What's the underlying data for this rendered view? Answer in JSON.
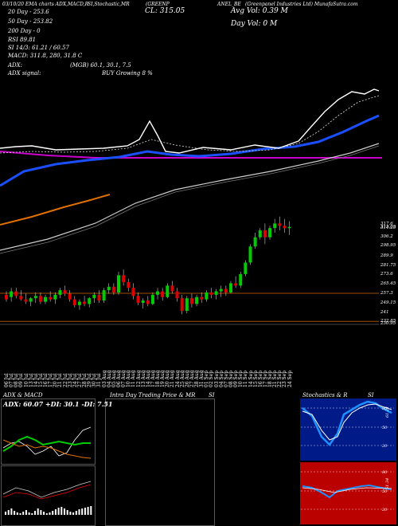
{
  "header": {
    "source": "MunafaSutra.com",
    "code_line": "03/10/20 EMA charts ADX,MACD,R",
    "stoch_line": "SI,Stochastic,MR",
    "name_line": "(GREENP",
    "anel_line": "ANEL_BE",
    "company_line": "(Greenpanel Industries Ltd) MunafaSutra.com",
    "cl": "CL: 315.05",
    "avg_vol": "Avg Vol: 0.39 M",
    "day_vol": "Day Vol: 0 M"
  },
  "info": {
    "dma20": "20 Day - 253.6",
    "dma50": "50 Day - 253.82",
    "dma200": "200 Day - 0",
    "rsi_line": "RSI 89.81",
    "stoch_line": "SI 14/3: 61.21 / 60.57",
    "macd_line": "MACD: 311.8, 280, 31.8 C",
    "adx_line": "ADX:",
    "adx_vals": "(MGB) 60.1, 30.1, 7.5",
    "adx_signal": "ADX signal:",
    "signal": "BUY Growing 8 %"
  },
  "panels": {
    "adx_title": "ADX  & MACD",
    "adx_box": "ADX: 60.07 +DI: 30.1 -DI: 7.51",
    "intraday_title": "Intra Day Trading Price  & MR",
    "intraday_si": "SI",
    "stoch_title": "Stochastics & R",
    "stoch_si": "SI",
    "stoch_scale": [
      "80",
      "50",
      "20"
    ],
    "rsi_scale": [
      "80",
      "50",
      "20"
    ],
    "stoch_value": "61.21",
    "rsi_value": "51.34"
  },
  "colors": {
    "candle_up": "#00cc00",
    "candle_down": "#dd0000",
    "ema_blue": "#1a4fff",
    "ema_orange": "#e07000",
    "ema_magenta": "#cc00cc",
    "ema_white": "#ffffff",
    "resistance": "#a05000",
    "stoch_bg": "#001a88",
    "rsi_bg": "#bb0000"
  },
  "chart_data": {
    "type": "candlestick",
    "y_ticks": [
      317.6,
      315.05,
      314.25,
      306.2,
      298.95,
      289.9,
      281.75,
      273.6,
      265.45,
      257.3,
      249.15,
      241,
      232.85,
      230.95
    ],
    "y_tick_labels": [
      "317.6",
      "315.05",
      "314.25",
      "306.2",
      "298.95",
      "289.9",
      "281.75",
      "273.6",
      "265.45",
      "257.3",
      "249.15",
      "241",
      "232.85",
      "230.95"
    ],
    "dates": [
      "06 Jul",
      "07 Jul",
      "08 Jul",
      "09 Jul",
      "10 Jul",
      "13 Jul",
      "14 Jul",
      "15 Jul",
      "16 Jul",
      "17 Jul",
      "20 Jul",
      "21 Jul",
      "22 Jul",
      "23 Jul",
      "24 Jul",
      "27 Jul",
      "28 Jul",
      "29 Jul",
      "30 Jul",
      "31 Jul",
      "03 Aug",
      "04 Aug",
      "05 Aug",
      "06 Aug",
      "07 Aug",
      "10 Aug",
      "11 Aug",
      "12 Aug",
      "13 Aug",
      "14 Aug",
      "17 Aug",
      "18 Aug",
      "19 Aug",
      "20 Aug",
      "21 Aug",
      "24 Aug",
      "25 Aug",
      "26 Aug",
      "27 Aug",
      "28 Aug",
      "31 Aug",
      "01 Sep",
      "02 Sep",
      "03 Sep",
      "04 Sep",
      "07 Sep",
      "08 Sep",
      "09 Sep",
      "10 Sep",
      "11 Sep",
      "14 Sep",
      "15 Sep",
      "16 Sep",
      "17 Sep",
      "18 Sep",
      "21 Sep",
      "22 Sep",
      "23 Sep",
      "24 Sep"
    ],
    "ohlc": [
      [
        256,
        259,
        250,
        252
      ],
      [
        254,
        262,
        250,
        259
      ],
      [
        259,
        262,
        253,
        255
      ],
      [
        255,
        260,
        251,
        252
      ],
      [
        252,
        257,
        248,
        250
      ],
      [
        250,
        254,
        246,
        253
      ],
      [
        253,
        258,
        249,
        255
      ],
      [
        255,
        258,
        248,
        250
      ],
      [
        250,
        256,
        248,
        254
      ],
      [
        254,
        259,
        250,
        252
      ],
      [
        252,
        258,
        248,
        256
      ],
      [
        256,
        262,
        253,
        260
      ],
      [
        260,
        264,
        255,
        257
      ],
      [
        257,
        260,
        250,
        252
      ],
      [
        252,
        255,
        245,
        247
      ],
      [
        247,
        252,
        243,
        250
      ],
      [
        250,
        255,
        246,
        248
      ],
      [
        248,
        254,
        245,
        253
      ],
      [
        253,
        258,
        249,
        256
      ],
      [
        256,
        260,
        249,
        251
      ],
      [
        251,
        262,
        249,
        260
      ],
      [
        260,
        266,
        257,
        263
      ],
      [
        263,
        266,
        256,
        258
      ],
      [
        258,
        276,
        256,
        273
      ],
      [
        273,
        278,
        264,
        267
      ],
      [
        267,
        270,
        259,
        262
      ],
      [
        262,
        266,
        252,
        255
      ],
      [
        255,
        258,
        247,
        249
      ],
      [
        249,
        253,
        244,
        251
      ],
      [
        251,
        255,
        246,
        248
      ],
      [
        248,
        258,
        247,
        256
      ],
      [
        256,
        262,
        252,
        259
      ],
      [
        259,
        262,
        251,
        254
      ],
      [
        254,
        266,
        253,
        264
      ],
      [
        264,
        268,
        257,
        259
      ],
      [
        259,
        262,
        250,
        253
      ],
      [
        253,
        256,
        239,
        242
      ],
      [
        242,
        255,
        240,
        253
      ],
      [
        253,
        257,
        245,
        248
      ],
      [
        248,
        256,
        246,
        254
      ],
      [
        254,
        258,
        249,
        252
      ],
      [
        252,
        260,
        250,
        258
      ],
      [
        258,
        262,
        253,
        256
      ],
      [
        256,
        261,
        252,
        259
      ],
      [
        259,
        264,
        254,
        261
      ],
      [
        261,
        264,
        255,
        258
      ],
      [
        258,
        268,
        257,
        266
      ],
      [
        266,
        272,
        262,
        264
      ],
      [
        264,
        276,
        262,
        274
      ],
      [
        274,
        286,
        272,
        284
      ],
      [
        284,
        300,
        282,
        298
      ],
      [
        298,
        310,
        296,
        306
      ],
      [
        306,
        314,
        304,
        312
      ],
      [
        312,
        318,
        300,
        306
      ],
      [
        306,
        316,
        304,
        314
      ],
      [
        314,
        322,
        310,
        318
      ],
      [
        318,
        324,
        312,
        316
      ],
      [
        316,
        322,
        310,
        314
      ],
      [
        314,
        320,
        308,
        315
      ]
    ]
  }
}
